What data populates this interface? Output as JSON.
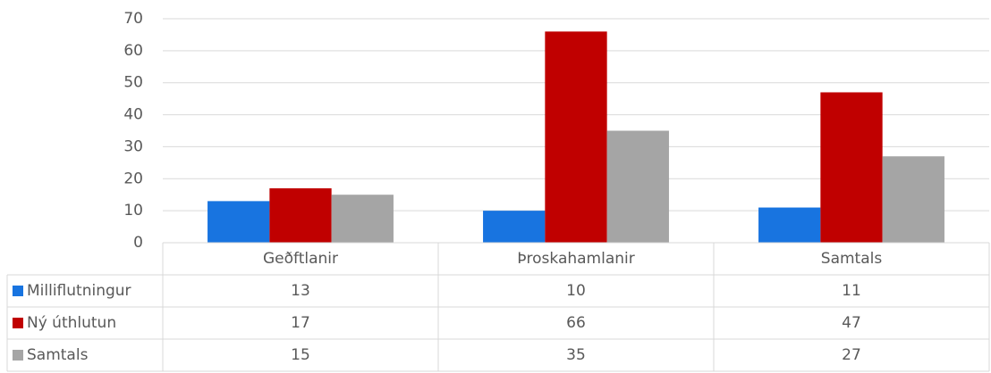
{
  "chart_data": {
    "type": "bar",
    "categories": [
      "Geðftlanir",
      "Þroskahamlanir",
      "Samtals"
    ],
    "series": [
      {
        "name": "Milliflutningur",
        "color": "#1874e0",
        "values": [
          13,
          10,
          11
        ]
      },
      {
        "name": "Ný úthlutun",
        "color": "#c00000",
        "values": [
          17,
          66,
          47
        ]
      },
      {
        "name": "Samtals",
        "color": "#a5a5a5",
        "values": [
          15,
          35,
          27
        ]
      }
    ],
    "ylim": [
      0,
      70
    ],
    "yticks": [
      0,
      10,
      20,
      30,
      40,
      50,
      60,
      70
    ],
    "grid": true
  }
}
